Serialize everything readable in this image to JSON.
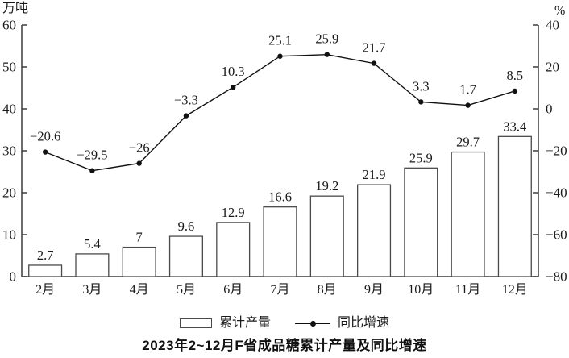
{
  "chart_data": {
    "type": "bar",
    "combo": "bar+line",
    "title": "2023年2~12月F省成品糖累计产量及同比增速",
    "categories": [
      "2月",
      "3月",
      "4月",
      "5月",
      "6月",
      "7月",
      "8月",
      "9月",
      "10月",
      "11月",
      "12月"
    ],
    "series": [
      {
        "name": "累计产量",
        "type": "bar",
        "axis": "left",
        "values": [
          2.7,
          5.4,
          7,
          9.6,
          12.9,
          16.6,
          19.2,
          21.9,
          25.9,
          29.7,
          33.4
        ],
        "labels": [
          "2.7",
          "5.4",
          "7",
          "9.6",
          "12.9",
          "16.6",
          "19.2",
          "21.9",
          "25.9",
          "29.7",
          "33.4"
        ]
      },
      {
        "name": "同比增速",
        "type": "line",
        "axis": "right",
        "values": [
          -20.6,
          -29.5,
          -26,
          -3.3,
          10.3,
          25.1,
          25.9,
          21.7,
          3.3,
          1.7,
          8.5
        ],
        "labels": [
          "−20.6",
          "−29.5",
          "−26",
          "−3.3",
          "10.3",
          "25.1",
          "25.9",
          "21.7",
          "3.3",
          "1.7",
          "8.5"
        ]
      }
    ],
    "left_axis": {
      "unit": "万吨",
      "min": 0,
      "max": 60,
      "tick_values": [
        60,
        50,
        40,
        30,
        20,
        10,
        0
      ],
      "tick_labels": [
        "60",
        "50",
        "40",
        "30",
        "20",
        "10",
        "0"
      ]
    },
    "right_axis": {
      "unit": "%",
      "min": -80,
      "max": 40,
      "tick_values": [
        40,
        20,
        0,
        -20,
        -40,
        -60,
        -80
      ],
      "tick_labels": [
        "40",
        "20",
        "0",
        "−20",
        "−40",
        "−60",
        "−80"
      ]
    },
    "legend_position": "bottom",
    "grid": false,
    "colors": {
      "bar_fill": "#ffffff",
      "bar_stroke": "#4a4a4a",
      "line": "#111111",
      "axis": "#3c3c3c",
      "text": "#1a1a1a"
    }
  }
}
